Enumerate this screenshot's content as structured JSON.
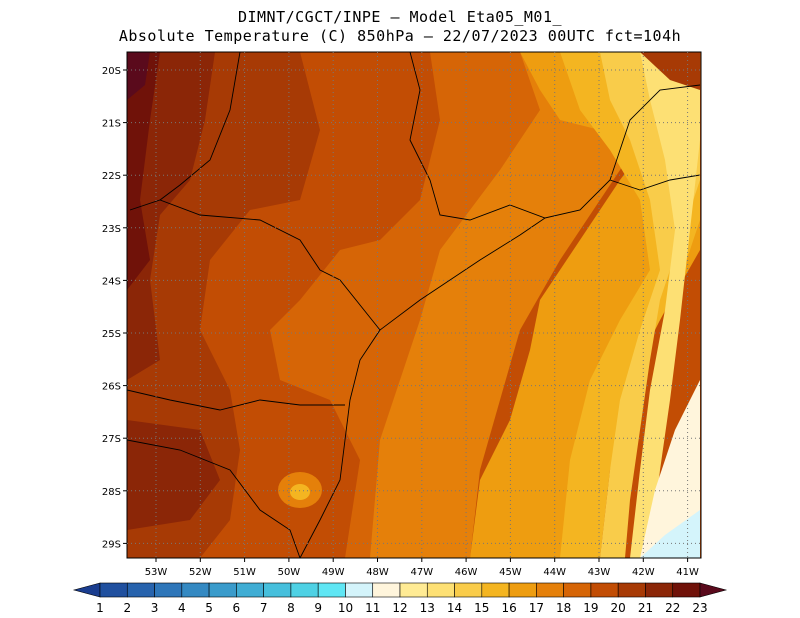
{
  "title": {
    "line1": "DIMNT/CGCT/INPE –  Model Eta05_M01_",
    "line2": "Absolute Temperature (C) 850hPa –  22/07/2023 00UTC fct=104h"
  },
  "map": {
    "lat_labels": [
      "20S",
      "21S",
      "22S",
      "23S",
      "24S",
      "25S",
      "26S",
      "27S",
      "28S",
      "29S"
    ],
    "lon_labels": [
      "53W",
      "52W",
      "51W",
      "50W",
      "49W",
      "48W",
      "47W",
      "46W",
      "45W",
      "44W",
      "43W",
      "42W",
      "41W"
    ],
    "region": "Southern/Southeastern Brazil",
    "variable": "Absolute Temperature (C) 850hPa"
  },
  "colorbar": {
    "labels": [
      "1",
      "2",
      "3",
      "4",
      "5",
      "6",
      "7",
      "8",
      "9",
      "10",
      "11",
      "12",
      "13",
      "14",
      "15",
      "16",
      "17",
      "18",
      "19",
      "20",
      "21",
      "22",
      "23"
    ],
    "colors": [
      "#1a3d8f",
      "#20509f",
      "#2763ad",
      "#2e76b9",
      "#3489c2",
      "#3a9bcb",
      "#40add4",
      "#46bfdc",
      "#4ed1e4",
      "#5fe6f4",
      "#d4f4fb",
      "#fff5dc",
      "#ffeb94",
      "#fde074",
      "#f9cc4a",
      "#f4b521",
      "#ee9d10",
      "#e5800a",
      "#d66506",
      "#c24d04",
      "#a73a05",
      "#8b2607",
      "#701209",
      "#5a0a1c"
    ]
  }
}
